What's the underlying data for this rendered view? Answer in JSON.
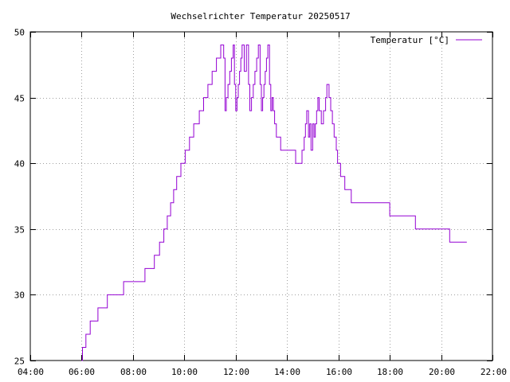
{
  "chart_data": {
    "type": "line",
    "title": "Wechselrichter Temperatur 20250517",
    "xlabel": "",
    "ylabel": "",
    "x_ticks": [
      "04:00",
      "06:00",
      "08:00",
      "10:00",
      "12:00",
      "14:00",
      "16:00",
      "18:00",
      "20:00",
      "22:00"
    ],
    "y_ticks": [
      "25",
      "30",
      "35",
      "40",
      "45",
      "50"
    ],
    "xlim": [
      "04:00",
      "22:00"
    ],
    "ylim": [
      25,
      50
    ],
    "grid": true,
    "legend_position": "top-right",
    "series": [
      {
        "name": "Temperatur [°C]",
        "color": "#9400d3",
        "points": [
          [
            "06:00",
            25
          ],
          [
            "06:02",
            26
          ],
          [
            "06:10",
            27
          ],
          [
            "06:20",
            28
          ],
          [
            "06:38",
            29
          ],
          [
            "07:00",
            30
          ],
          [
            "07:38",
            31
          ],
          [
            "08:28",
            32
          ],
          [
            "08:50",
            33
          ],
          [
            "09:02",
            34
          ],
          [
            "09:12",
            35
          ],
          [
            "09:20",
            36
          ],
          [
            "09:28",
            37
          ],
          [
            "09:35",
            38
          ],
          [
            "09:42",
            39
          ],
          [
            "09:52",
            40
          ],
          [
            "10:02",
            41
          ],
          [
            "10:12",
            42
          ],
          [
            "10:22",
            43
          ],
          [
            "10:35",
            44
          ],
          [
            "10:45",
            45
          ],
          [
            "10:55",
            46
          ],
          [
            "11:05",
            47
          ],
          [
            "11:15",
            48
          ],
          [
            "11:25",
            49
          ],
          [
            "11:32",
            48
          ],
          [
            "11:35",
            44
          ],
          [
            "11:38",
            45
          ],
          [
            "11:42",
            46
          ],
          [
            "11:46",
            47
          ],
          [
            "11:50",
            48
          ],
          [
            "11:54",
            49
          ],
          [
            "11:57",
            46
          ],
          [
            "12:00",
            44
          ],
          [
            "12:03",
            45
          ],
          [
            "12:06",
            46
          ],
          [
            "12:09",
            47
          ],
          [
            "12:12",
            48
          ],
          [
            "12:15",
            49
          ],
          [
            "12:20",
            47
          ],
          [
            "12:25",
            49
          ],
          [
            "12:30",
            46
          ],
          [
            "12:33",
            44
          ],
          [
            "12:37",
            45
          ],
          [
            "12:41",
            46
          ],
          [
            "12:45",
            47
          ],
          [
            "12:49",
            48
          ],
          [
            "12:53",
            49
          ],
          [
            "12:57",
            46
          ],
          [
            "13:00",
            44
          ],
          [
            "13:03",
            45
          ],
          [
            "13:06",
            46
          ],
          [
            "13:09",
            47
          ],
          [
            "13:12",
            48
          ],
          [
            "13:15",
            49
          ],
          [
            "13:19",
            46
          ],
          [
            "13:22",
            44
          ],
          [
            "13:25",
            45
          ],
          [
            "13:28",
            44
          ],
          [
            "13:31",
            43
          ],
          [
            "13:35",
            42
          ],
          [
            "13:45",
            41
          ],
          [
            "14:20",
            40
          ],
          [
            "14:35",
            41
          ],
          [
            "14:40",
            42
          ],
          [
            "14:43",
            43
          ],
          [
            "14:46",
            44
          ],
          [
            "14:50",
            42
          ],
          [
            "14:53",
            43
          ],
          [
            "14:56",
            41
          ],
          [
            "15:00",
            43
          ],
          [
            "15:03",
            42
          ],
          [
            "15:06",
            43
          ],
          [
            "15:09",
            44
          ],
          [
            "15:12",
            45
          ],
          [
            "15:15",
            44
          ],
          [
            "15:20",
            43
          ],
          [
            "15:25",
            44
          ],
          [
            "15:30",
            45
          ],
          [
            "15:33",
            46
          ],
          [
            "15:38",
            45
          ],
          [
            "15:42",
            44
          ],
          [
            "15:46",
            43
          ],
          [
            "15:50",
            42
          ],
          [
            "15:55",
            41
          ],
          [
            "15:58",
            40
          ],
          [
            "16:05",
            39
          ],
          [
            "16:15",
            38
          ],
          [
            "16:30",
            37
          ],
          [
            "18:00",
            36
          ],
          [
            "19:00",
            35
          ],
          [
            "20:20",
            34
          ],
          [
            "21:00",
            34
          ]
        ]
      }
    ]
  }
}
